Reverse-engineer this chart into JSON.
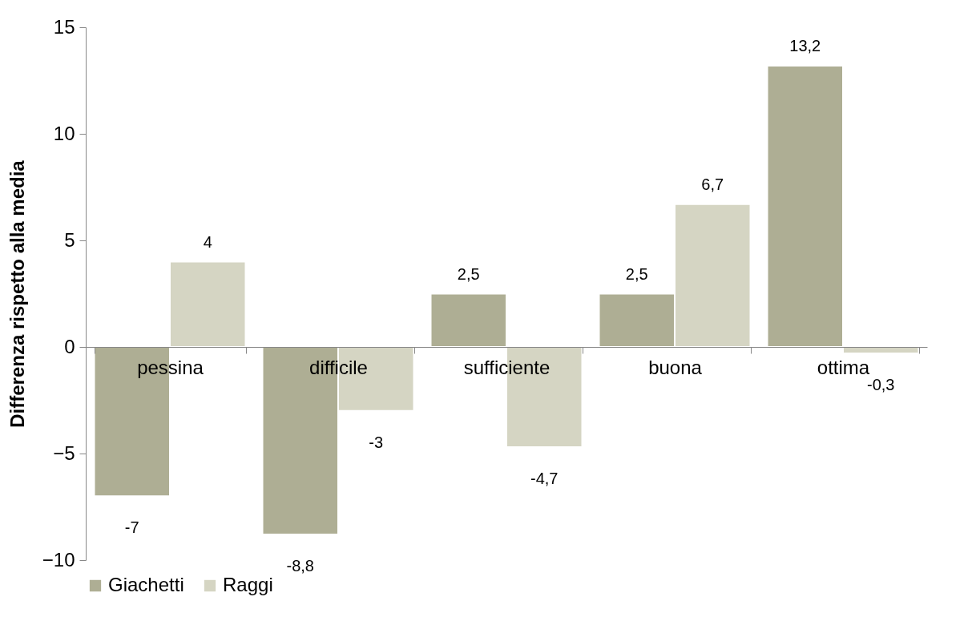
{
  "chart_data": {
    "type": "bar",
    "ylabel": "Differenza rispetto alla media",
    "categories": [
      "pessina",
      "difficile",
      "sufficiente",
      "buona",
      "ottima"
    ],
    "series": [
      {
        "name": "Giachetti",
        "color": "#aeae94",
        "values": [
          -7,
          -8.8,
          2.5,
          2.5,
          13.2
        ],
        "value_labels": [
          "-7",
          "-8,8",
          "2,5",
          "2,5",
          "13,2"
        ]
      },
      {
        "name": "Raggi",
        "color": "#d5d5c3",
        "values": [
          4,
          -3,
          -4.7,
          6.7,
          -0.3
        ],
        "value_labels": [
          "4",
          "-3",
          "-4,7",
          "6,7",
          "-0,3"
        ]
      }
    ],
    "ylim": [
      -10,
      15
    ],
    "yticks": [
      -10,
      -5,
      0,
      5,
      10,
      15
    ],
    "grid": false,
    "legend": "bottom"
  }
}
